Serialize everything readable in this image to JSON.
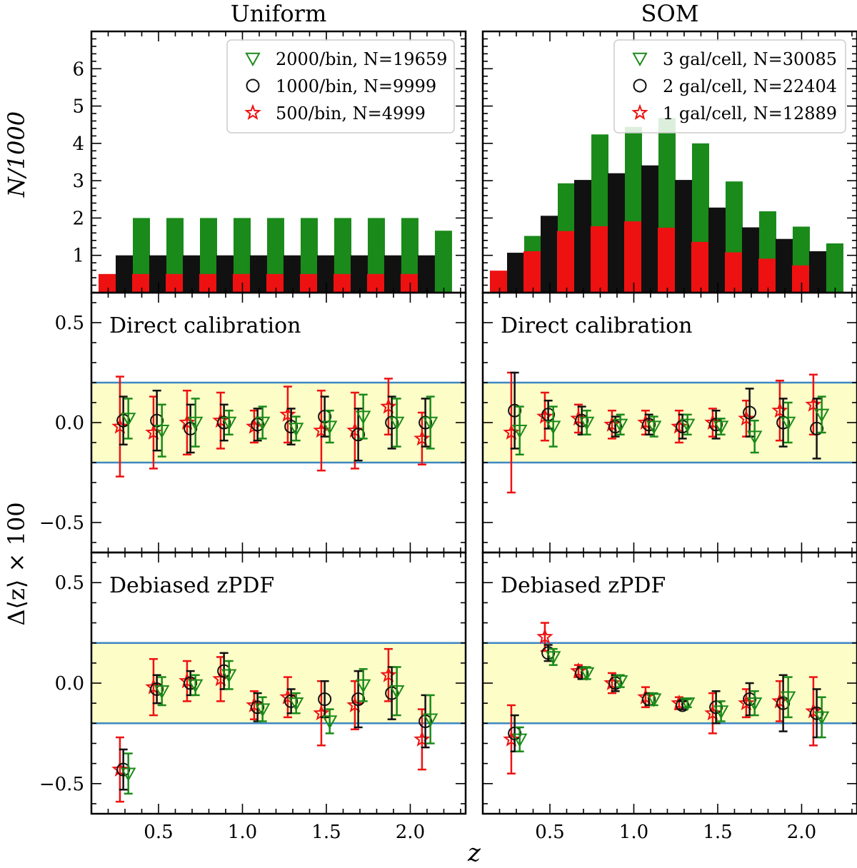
{
  "figure": {
    "column_titles": [
      "Uniform",
      "SOM"
    ],
    "x_label": "z",
    "y_label_top": "N/1000",
    "y_label_bottom": "Δ⟨z⟩ × 100",
    "colors": {
      "green": "#1a8a1a",
      "black": "#111111",
      "red": "#ee1111",
      "band": "#fdfdc8",
      "band_line": "#3d87c2"
    }
  },
  "chart_data": [
    {
      "type": "bar",
      "panel": "uniform-counts",
      "title": "Uniform",
      "ylabel": "N/1000",
      "xlim": [
        0.1,
        2.33
      ],
      "ylim": [
        0,
        7
      ],
      "x_ticks": [
        0.5,
        1.0,
        1.5,
        2.0
      ],
      "y_ticks": [
        1,
        2,
        3,
        4,
        5,
        6
      ],
      "y_tick_labels": [
        "1",
        "2",
        "3",
        "4",
        "5",
        "6"
      ],
      "categories": [
        0.3,
        0.5,
        0.7,
        0.9,
        1.1,
        1.3,
        1.5,
        1.7,
        1.9,
        2.1
      ],
      "series": [
        {
          "name": "2000/bin, N=19659",
          "color": "green",
          "marker": "triangle-down",
          "values": [
            2.0,
            2.0,
            2.0,
            2.0,
            2.0,
            2.0,
            2.0,
            2.0,
            2.0,
            1.66
          ]
        },
        {
          "name": "1000/bin, N=9999",
          "color": "black",
          "marker": "circle",
          "values": [
            1.0,
            1.0,
            1.0,
            1.0,
            1.0,
            1.0,
            1.0,
            1.0,
            1.0,
            1.0
          ]
        },
        {
          "name": "500/bin, N=4999",
          "color": "red",
          "marker": "star",
          "values": [
            0.5,
            0.5,
            0.5,
            0.5,
            0.5,
            0.5,
            0.5,
            0.5,
            0.5,
            0.5
          ]
        }
      ]
    },
    {
      "type": "bar",
      "panel": "som-counts",
      "title": "SOM",
      "ylabel": "N/1000",
      "xlim": [
        0.1,
        2.33
      ],
      "ylim": [
        0,
        7
      ],
      "x_ticks": [
        0.5,
        1.0,
        1.5,
        2.0
      ],
      "categories": [
        0.3,
        0.5,
        0.7,
        0.9,
        1.1,
        1.3,
        1.5,
        1.7,
        1.9,
        2.1
      ],
      "series": [
        {
          "name": "3 gal/cell, N=30085",
          "color": "green",
          "marker": "triangle-down",
          "values": [
            1.52,
            2.93,
            4.24,
            4.44,
            4.68,
            4.0,
            2.98,
            2.18,
            1.77,
            1.32
          ]
        },
        {
          "name": "2 gal/cell, N=22404",
          "color": "black",
          "marker": "circle",
          "values": [
            1.07,
            2.06,
            3.02,
            3.2,
            3.41,
            3.02,
            2.28,
            1.75,
            1.44,
            1.11
          ]
        },
        {
          "name": "1 gal/cell, N=12889",
          "color": "red",
          "marker": "star",
          "values": [
            0.59,
            1.11,
            1.65,
            1.78,
            1.91,
            1.74,
            1.36,
            1.08,
            0.91,
            0.73
          ]
        }
      ]
    },
    {
      "type": "scatter",
      "panel": "uniform-direct",
      "annotation": "Direct calibration",
      "xlim": [
        0.1,
        2.33
      ],
      "ylim": [
        -0.65,
        0.65
      ],
      "y_ticks": [
        -0.5,
        0.0,
        0.5
      ],
      "y_tick_labels": [
        "−0.5",
        "0.0",
        "0.5"
      ],
      "band": [
        -0.2,
        0.2
      ],
      "series": [
        {
          "name": "2000/bin",
          "color": "green",
          "marker": "triangle-down",
          "x": [
            0.32,
            0.52,
            0.72,
            0.92,
            1.12,
            1.32,
            1.52,
            1.72,
            1.92,
            2.12
          ],
          "y": [
            0.02,
            -0.04,
            0.0,
            0.0,
            0.0,
            -0.03,
            -0.02,
            0.03,
            0.0,
            0.0
          ],
          "err": [
            0.1,
            0.13,
            0.12,
            0.06,
            0.08,
            0.06,
            0.08,
            0.11,
            0.12,
            0.13
          ]
        },
        {
          "name": "1000/bin",
          "color": "black",
          "marker": "circle",
          "x": [
            0.29,
            0.49,
            0.69,
            0.89,
            1.09,
            1.29,
            1.49,
            1.69,
            1.89,
            2.09
          ],
          "y": [
            0.01,
            0.01,
            -0.03,
            0.0,
            -0.01,
            -0.02,
            0.03,
            -0.06,
            0.0,
            0.0
          ],
          "err": [
            0.12,
            0.15,
            0.12,
            0.09,
            0.08,
            0.09,
            0.1,
            0.13,
            0.13,
            0.12
          ]
        },
        {
          "name": "500/bin",
          "color": "red",
          "marker": "star",
          "x": [
            0.27,
            0.47,
            0.67,
            0.87,
            1.07,
            1.27,
            1.47,
            1.67,
            1.87,
            2.07
          ],
          "y": [
            -0.02,
            -0.05,
            0.0,
            0.01,
            -0.02,
            0.04,
            -0.04,
            -0.04,
            0.08,
            -0.08
          ],
          "err": [
            0.25,
            0.18,
            0.16,
            0.14,
            0.08,
            0.14,
            0.2,
            0.19,
            0.14,
            0.13
          ]
        }
      ]
    },
    {
      "type": "scatter",
      "panel": "som-direct",
      "annotation": "Direct calibration",
      "xlim": [
        0.1,
        2.33
      ],
      "ylim": [
        -0.65,
        0.65
      ],
      "band": [
        -0.2,
        0.2
      ],
      "series": [
        {
          "name": "3 gal/cell",
          "color": "green",
          "marker": "triangle-down",
          "x": [
            0.32,
            0.52,
            0.72,
            0.92,
            1.12,
            1.32,
            1.52,
            1.72,
            1.92,
            2.12
          ],
          "y": [
            -0.04,
            -0.02,
            0.0,
            -0.01,
            -0.02,
            -0.01,
            -0.02,
            -0.07,
            0.0,
            0.04
          ],
          "err": [
            0.12,
            0.1,
            0.06,
            0.05,
            0.05,
            0.05,
            0.04,
            0.08,
            0.1,
            0.09
          ]
        },
        {
          "name": "2 gal/cell",
          "color": "black",
          "marker": "circle",
          "x": [
            0.29,
            0.49,
            0.69,
            0.89,
            1.09,
            1.29,
            1.49,
            1.69,
            1.89,
            2.09
          ],
          "y": [
            0.06,
            0.04,
            0.01,
            -0.02,
            -0.01,
            -0.02,
            -0.01,
            0.05,
            0.0,
            -0.03
          ],
          "err": [
            0.19,
            0.07,
            0.07,
            0.05,
            0.05,
            0.06,
            0.07,
            0.12,
            0.12,
            0.15
          ]
        },
        {
          "name": "1 gal/cell",
          "color": "red",
          "marker": "star",
          "x": [
            0.27,
            0.47,
            0.67,
            0.87,
            1.07,
            1.27,
            1.47,
            1.67,
            1.87,
            2.07
          ],
          "y": [
            -0.05,
            0.03,
            0.02,
            -0.01,
            0.0,
            -0.02,
            0.0,
            0.02,
            0.06,
            0.09
          ],
          "err": [
            0.3,
            0.12,
            0.07,
            0.07,
            0.06,
            0.08,
            0.07,
            0.09,
            0.15,
            0.15
          ]
        }
      ]
    },
    {
      "type": "scatter",
      "panel": "uniform-debiased",
      "annotation": "Debiased zPDF",
      "xlim": [
        0.1,
        2.33
      ],
      "ylim": [
        -0.65,
        0.65
      ],
      "band": [
        -0.2,
        0.2
      ],
      "series": [
        {
          "name": "2000/bin",
          "color": "green",
          "marker": "triangle-down",
          "x": [
            0.32,
            0.52,
            0.72,
            0.92,
            1.12,
            1.32,
            1.52,
            1.72,
            1.92,
            2.12
          ],
          "y": [
            -0.45,
            -0.04,
            -0.01,
            0.04,
            -0.13,
            -0.1,
            -0.19,
            -0.01,
            -0.04,
            -0.18
          ],
          "err": [
            0.1,
            0.07,
            0.05,
            0.07,
            0.06,
            0.05,
            0.06,
            0.08,
            0.12,
            0.12
          ]
        },
        {
          "name": "1000/bin",
          "color": "black",
          "marker": "circle",
          "x": [
            0.29,
            0.49,
            0.69,
            0.89,
            1.09,
            1.29,
            1.49,
            1.69,
            1.89,
            2.09
          ],
          "y": [
            -0.43,
            -0.03,
            0.0,
            0.06,
            -0.12,
            -0.09,
            -0.08,
            -0.08,
            -0.05,
            -0.19
          ],
          "err": [
            0.1,
            0.07,
            0.06,
            0.09,
            0.07,
            0.06,
            0.09,
            0.14,
            0.13,
            0.13
          ]
        },
        {
          "name": "500/bin",
          "color": "red",
          "marker": "star",
          "x": [
            0.27,
            0.47,
            0.67,
            0.87,
            1.07,
            1.27,
            1.47,
            1.67,
            1.87,
            2.07
          ],
          "y": [
            -0.43,
            -0.02,
            0.01,
            0.02,
            -0.11,
            -0.07,
            -0.15,
            -0.11,
            0.04,
            -0.28
          ],
          "err": [
            0.16,
            0.14,
            0.1,
            0.11,
            0.07,
            0.1,
            0.16,
            0.12,
            0.13,
            0.15
          ]
        }
      ]
    },
    {
      "type": "scatter",
      "panel": "som-debiased",
      "annotation": "Debiased zPDF",
      "xlim": [
        0.1,
        2.33
      ],
      "ylim": [
        -0.65,
        0.65
      ],
      "band": [
        -0.2,
        0.2
      ],
      "series": [
        {
          "name": "3 gal/cell",
          "color": "green",
          "marker": "triangle-down",
          "x": [
            0.32,
            0.52,
            0.72,
            0.92,
            1.12,
            1.32,
            1.52,
            1.72,
            1.92,
            2.12
          ],
          "y": [
            -0.28,
            0.13,
            0.05,
            0.01,
            -0.08,
            -0.1,
            -0.14,
            -0.1,
            -0.07,
            -0.17
          ],
          "err": [
            0.06,
            0.04,
            0.03,
            0.03,
            0.03,
            0.02,
            0.05,
            0.06,
            0.1,
            0.1
          ]
        },
        {
          "name": "2 gal/cell",
          "color": "black",
          "marker": "circle",
          "x": [
            0.29,
            0.49,
            0.69,
            0.89,
            1.09,
            1.29,
            1.49,
            1.69,
            1.89,
            2.09
          ],
          "y": [
            -0.25,
            0.15,
            0.05,
            0.0,
            -0.08,
            -0.11,
            -0.12,
            -0.08,
            -0.1,
            -0.15
          ],
          "err": [
            0.09,
            0.04,
            0.03,
            0.04,
            0.03,
            0.02,
            0.08,
            0.08,
            0.14,
            0.12
          ]
        },
        {
          "name": "1 gal/cell",
          "color": "red",
          "marker": "star",
          "x": [
            0.27,
            0.47,
            0.67,
            0.87,
            1.07,
            1.27,
            1.47,
            1.67,
            1.87,
            2.07
          ],
          "y": [
            -0.28,
            0.23,
            0.06,
            0.0,
            -0.07,
            -0.1,
            -0.15,
            -0.1,
            -0.09,
            -0.14
          ],
          "err": [
            0.17,
            0.07,
            0.03,
            0.05,
            0.05,
            0.03,
            0.1,
            0.07,
            0.1,
            0.17
          ]
        }
      ]
    }
  ]
}
